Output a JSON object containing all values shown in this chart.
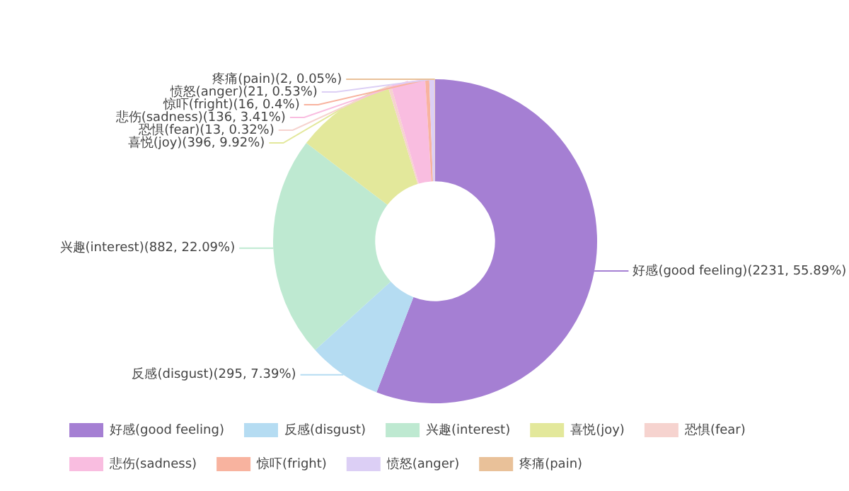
{
  "chart_data": {
    "type": "donut",
    "categories": [
      "好感(good feeling)",
      "反感(disgust)",
      "兴趣(interest)",
      "喜悦(joy)",
      "恐惧(fear)",
      "悲伤(sadness)",
      "惊吓(fright)",
      "愤怒(anger)",
      "疼痛(pain)"
    ],
    "values": [
      2231,
      295,
      882,
      396,
      13,
      136,
      16,
      21,
      2
    ],
    "colors": [
      "#a57fd3",
      "#b5dcf2",
      "#bee9d1",
      "#e3e89b",
      "#f6d3cf",
      "#f9bde0",
      "#f8b39f",
      "#dccff5",
      "#e9c199"
    ],
    "value_labels": [
      "(2231, 55.89%)",
      "(295, 7.39%)",
      "(882, 22.09%)",
      "(396, 9.92%)",
      "(13, 0.32%)",
      "(136, 3.41%)",
      "(16, 0.4%)",
      "(21, 0.53%)",
      "(2, 0.05%)"
    ],
    "legend": "bottom"
  }
}
